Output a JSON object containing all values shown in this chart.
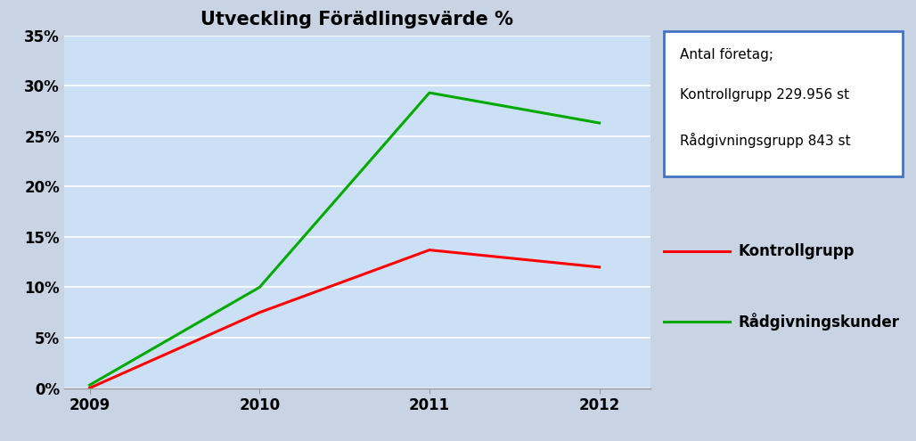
{
  "title": "Utveckling Förädlingsvärde %",
  "x_values": [
    2009,
    2010,
    2011,
    2012
  ],
  "kontrollgrupp": [
    0.0,
    0.075,
    0.137,
    0.12
  ],
  "radgivningskunder": [
    0.003,
    0.1,
    0.293,
    0.263
  ],
  "kontrollgrupp_color": "#FF0000",
  "radgivningskunder_color": "#00AA00",
  "plot_bg": "#cce0f5",
  "right_panel_bg": "#dce8f5",
  "outer_bg": "#c8d4e3",
  "ylim": [
    0,
    0.35
  ],
  "yticks": [
    0.0,
    0.05,
    0.1,
    0.15,
    0.2,
    0.25,
    0.3,
    0.35
  ],
  "ytick_labels": [
    "0%",
    "5%",
    "10%",
    "15%",
    "20%",
    "25%",
    "30%",
    "35%"
  ],
  "xticks": [
    2009,
    2010,
    2011,
    2012
  ],
  "xlim": [
    2008.85,
    2012.3
  ],
  "legend_kontroll": "Kontrollgrupp",
  "legend_radgivning": "Rådgivningskunder",
  "info_line1": "Antal företag;",
  "info_line2": "Kontrollgrupp 229.956 st",
  "info_line3": "Rådgivningsgrupp 843 st",
  "title_fontsize": 15,
  "tick_fontsize": 12,
  "legend_fontsize": 12,
  "info_fontsize": 11,
  "line_width": 2.2,
  "info_box_color": "#4472c4",
  "grid_color": "#ffffff"
}
